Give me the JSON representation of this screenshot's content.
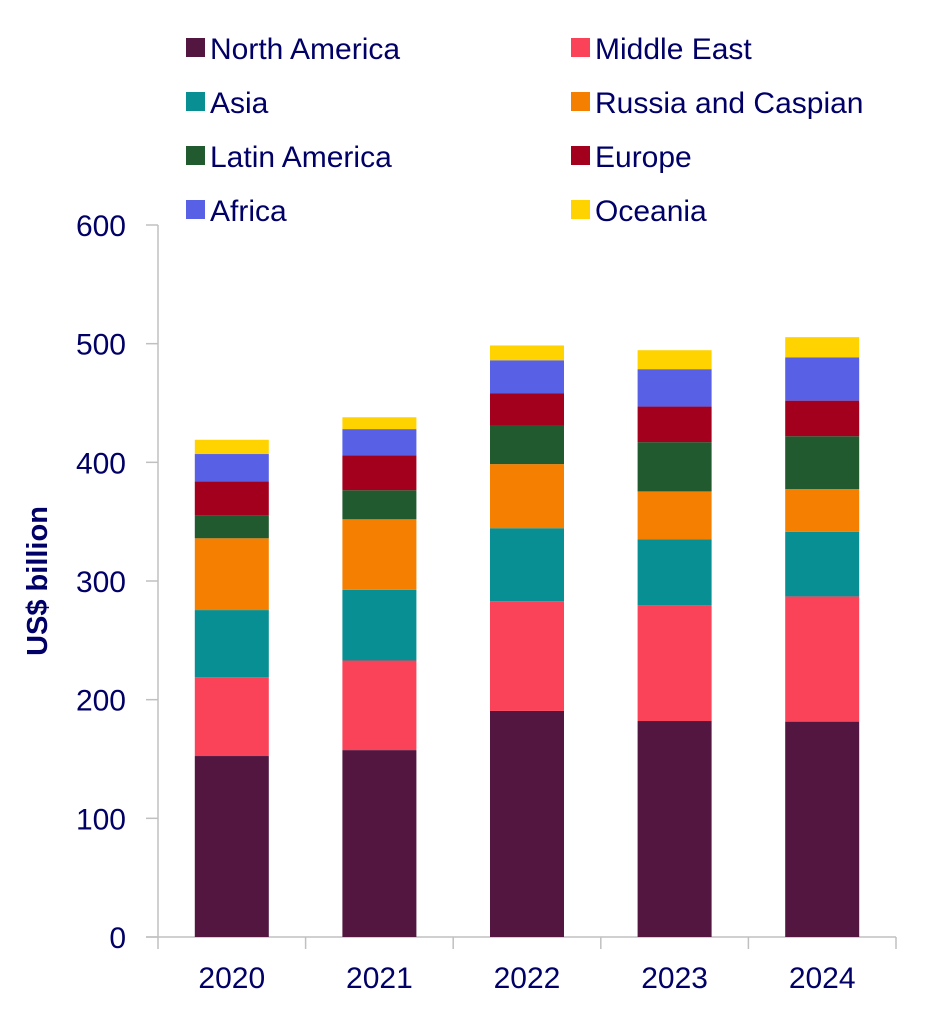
{
  "chart_data": {
    "type": "bar",
    "stacked": true,
    "title": "",
    "xlabel": "",
    "ylabel": "US$ billion",
    "ylim": [
      0,
      600
    ],
    "yticks": [
      0,
      100,
      200,
      300,
      400,
      500,
      600
    ],
    "ytick_labels": [
      "0",
      "100",
      "200",
      "300",
      "400",
      "500",
      "600"
    ],
    "grid": false,
    "legend_position": "top",
    "categories": [
      "2020",
      "2021",
      "2022",
      "2023",
      "2024"
    ],
    "series": [
      {
        "name": "North America",
        "color": "#521640",
        "values": [
          152.5,
          157.5,
          190.5,
          182,
          181.5
        ]
      },
      {
        "name": "Middle East",
        "color": "#FA4359",
        "values": [
          66.5,
          75.5,
          92.5,
          97.5,
          105.5
        ]
      },
      {
        "name": "Asia",
        "color": "#078F93",
        "values": [
          56.5,
          59.5,
          61.5,
          55.5,
          54.5
        ]
      },
      {
        "name": "Russia and Caspian",
        "color": "#F57F00",
        "values": [
          60.5,
          59.5,
          54,
          40.5,
          36
        ]
      },
      {
        "name": "Latin America",
        "color": "#205A2E",
        "values": [
          19,
          24.5,
          32.5,
          41.5,
          44.5
        ]
      },
      {
        "name": "Europe",
        "color": "#A3001E",
        "values": [
          29,
          29.5,
          27,
          30,
          30
        ]
      },
      {
        "name": "Africa",
        "color": "#5860E5",
        "values": [
          23,
          22,
          28,
          31.5,
          36.5
        ]
      },
      {
        "name": "Oceania",
        "color": "#FFD300",
        "values": [
          12,
          10,
          12.5,
          16,
          17
        ]
      }
    ]
  }
}
